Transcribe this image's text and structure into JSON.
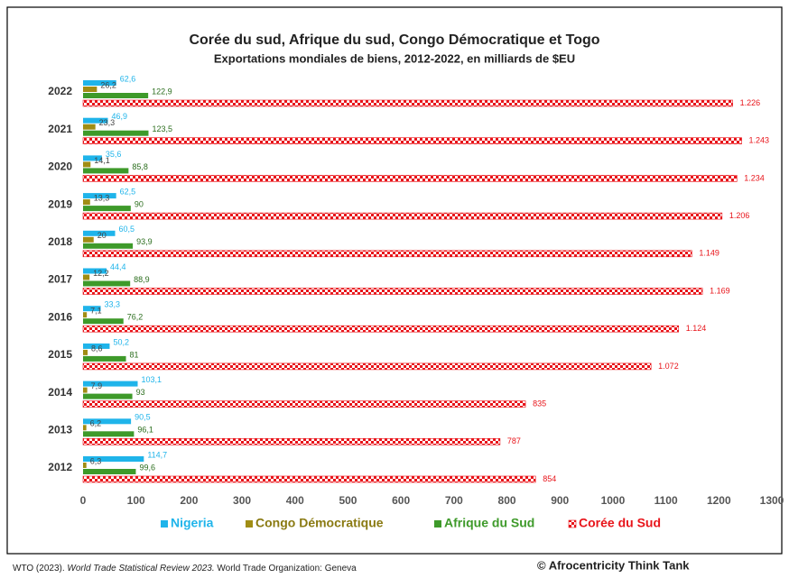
{
  "chart_data": {
    "type": "hbar",
    "title": "Corée du sud, Afrique du sud,  Congo Démocratique et Togo",
    "subtitle": "Exportations mondiales de biens, 2012-2022, en milliards de $EU",
    "categories": [
      "2022",
      "2021",
      "2020",
      "2019",
      "2018",
      "2017",
      "2016",
      "2015",
      "2014",
      "2013",
      "2012"
    ],
    "series": [
      {
        "name": "Nigeria",
        "color": "#1fb4ea",
        "values": [
          62.6,
          46.9,
          35.6,
          62.5,
          60.5,
          44.4,
          33.3,
          50.2,
          103.1,
          90.5,
          114.7
        ],
        "value_labels": [
          "62,6",
          "46,9",
          "35,6",
          "62,5",
          "60,5",
          "44,4",
          "33,3",
          "50,2",
          "103,1",
          "90,5",
          "114,7"
        ]
      },
      {
        "name": "Congo Démocratique",
        "color": "#a08d14",
        "values": [
          26.2,
          23.3,
          14.1,
          13.3,
          20,
          12.2,
          7.1,
          8.6,
          7.9,
          6.2,
          6.3
        ],
        "value_labels": [
          "26,2",
          "23,3",
          "14,1",
          "13,3",
          "20",
          "12,2",
          "7,1",
          "8,6",
          "7,9",
          "6,2",
          "6,3"
        ]
      },
      {
        "name": "Afrique du Sud",
        "color": "#3e9a2a",
        "values": [
          122.9,
          123.5,
          85.8,
          90,
          93.9,
          88.9,
          76.2,
          81,
          93,
          96.1,
          99.6
        ],
        "value_labels": [
          "122,9",
          "123,5",
          "85,8",
          "90",
          "93,9",
          "88,9",
          "76,2",
          "81",
          "93",
          "96,1",
          "99,6"
        ]
      },
      {
        "name": "Corée du Sud",
        "color": "#e8141a",
        "values": [
          1226,
          1243,
          1234,
          1206,
          1149,
          1169,
          1124,
          1072,
          835,
          787,
          854
        ],
        "value_labels": [
          "1.226",
          "1.243",
          "1.234",
          "1.206",
          "1.149",
          "1.169",
          "1.124",
          "1.072",
          "835",
          "787",
          "854"
        ]
      }
    ],
    "xlim": [
      0,
      1300
    ],
    "xticks": [
      0,
      100,
      200,
      300,
      400,
      500,
      600,
      700,
      800,
      900,
      1000,
      1100,
      1200,
      1300
    ],
    "grid": false,
    "legend": "bottom",
    "source": [
      "WTO (2023). ",
      "World Trade Statistical Review 2023.",
      " World Trade Organization: Geneva"
    ],
    "credit": "© Afrocentricity Think Tank"
  }
}
